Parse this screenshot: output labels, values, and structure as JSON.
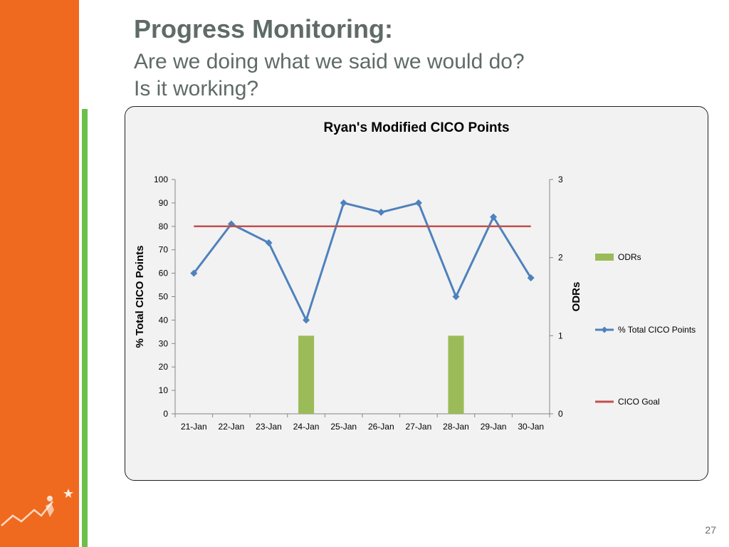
{
  "slide": {
    "title": "Progress Monitoring:",
    "subtitle_lines": [
      "Are we doing what we said we would do?",
      "Is it working?"
    ],
    "page_number": "27",
    "colors": {
      "orange_band": "#ef6a1f",
      "green_bar": "#6cbf4a",
      "title_text": "#5f6b66"
    }
  },
  "chart_data": {
    "type": "bar+line",
    "title": "Ryan's Modified CICO Points",
    "categories": [
      "21-Jan",
      "22-Jan",
      "23-Jan",
      "24-Jan",
      "25-Jan",
      "26-Jan",
      "27-Jan",
      "28-Jan",
      "29-Jan",
      "30-Jan"
    ],
    "y_left": {
      "label": "% Total CICO Points",
      "range": [
        0,
        100
      ],
      "ticks": [
        0,
        10,
        20,
        30,
        40,
        50,
        60,
        70,
        80,
        90,
        100
      ]
    },
    "y_right": {
      "label": "ODRs",
      "range": [
        0,
        3
      ],
      "ticks": [
        0,
        1,
        2,
        3
      ]
    },
    "series": [
      {
        "name": "ODRs",
        "type": "bar",
        "axis": "right",
        "color": "#9bbb59",
        "values": [
          0,
          0,
          0,
          1,
          0,
          0,
          0,
          1,
          0,
          0
        ]
      },
      {
        "name": "% Total CICO Points",
        "type": "line",
        "axis": "left",
        "color": "#4f81bd",
        "marker": "diamond",
        "values": [
          60,
          81,
          73,
          40,
          90,
          86,
          90,
          50,
          84,
          58
        ]
      },
      {
        "name": "CICO Goal",
        "type": "line",
        "axis": "left",
        "color": "#c0504d",
        "values": [
          80,
          80,
          80,
          80,
          80,
          80,
          80,
          80,
          80,
          80
        ]
      }
    ],
    "legend_position": "right",
    "grid": false
  }
}
